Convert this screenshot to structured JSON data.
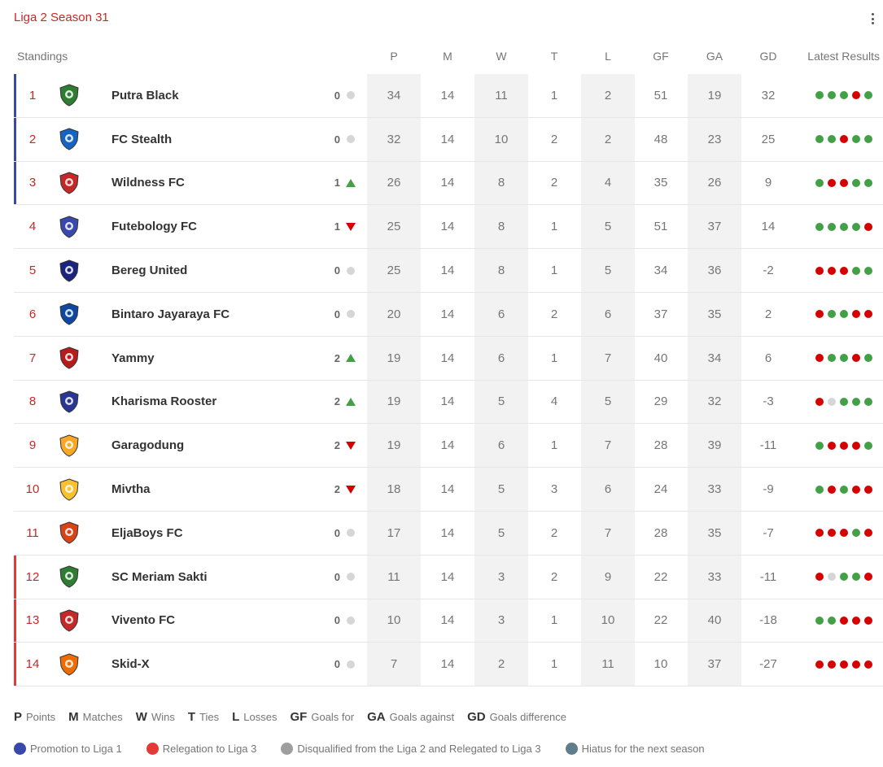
{
  "title": "Liga 2 Season 31",
  "header": {
    "standings": "Standings",
    "cols": [
      "P",
      "M",
      "W",
      "T",
      "L",
      "GF",
      "GA",
      "GD"
    ],
    "latest": "Latest Results"
  },
  "colors": {
    "promotion": "#3949ab",
    "relegation": "#e53935",
    "disqualified": "#9e9e9e",
    "hiatus": "#607d8b",
    "win": "#43a047",
    "loss": "#d50000",
    "draw": "#d6d6d6",
    "accent": "#c62828"
  },
  "rows": [
    {
      "pos": "1",
      "team": "Putra Black",
      "zone": "promotion",
      "chg": "0",
      "trend": "same",
      "stats": [
        "34",
        "14",
        "11",
        "1",
        "2",
        "51",
        "19",
        "32"
      ],
      "results": [
        "W",
        "W",
        "W",
        "L",
        "W"
      ],
      "logo_color": "#2e7d32"
    },
    {
      "pos": "2",
      "team": "FC Stealth",
      "zone": "promotion",
      "chg": "0",
      "trend": "same",
      "stats": [
        "32",
        "14",
        "10",
        "2",
        "2",
        "48",
        "23",
        "25"
      ],
      "results": [
        "W",
        "W",
        "L",
        "W",
        "W"
      ],
      "logo_color": "#1565c0"
    },
    {
      "pos": "3",
      "team": "Wildness FC",
      "zone": "promotion",
      "chg": "1",
      "trend": "up",
      "stats": [
        "26",
        "14",
        "8",
        "2",
        "4",
        "35",
        "26",
        "9"
      ],
      "results": [
        "W",
        "L",
        "L",
        "W",
        "W"
      ],
      "logo_color": "#c62828"
    },
    {
      "pos": "4",
      "team": "Futebology FC",
      "zone": "",
      "chg": "1",
      "trend": "down",
      "stats": [
        "25",
        "14",
        "8",
        "1",
        "5",
        "51",
        "37",
        "14"
      ],
      "results": [
        "W",
        "W",
        "W",
        "W",
        "L"
      ],
      "logo_color": "#3949ab"
    },
    {
      "pos": "5",
      "team": "Bereg United",
      "zone": "",
      "chg": "0",
      "trend": "same",
      "stats": [
        "25",
        "14",
        "8",
        "1",
        "5",
        "34",
        "36",
        "-2"
      ],
      "results": [
        "L",
        "L",
        "L",
        "W",
        "W"
      ],
      "logo_color": "#1a237e"
    },
    {
      "pos": "6",
      "team": "Bintaro Jayaraya FC",
      "zone": "",
      "chg": "0",
      "trend": "same",
      "stats": [
        "20",
        "14",
        "6",
        "2",
        "6",
        "37",
        "35",
        "2"
      ],
      "results": [
        "L",
        "W",
        "W",
        "L",
        "L"
      ],
      "logo_color": "#0d47a1"
    },
    {
      "pos": "7",
      "team": "Yammy",
      "zone": "",
      "chg": "2",
      "trend": "up",
      "stats": [
        "19",
        "14",
        "6",
        "1",
        "7",
        "40",
        "34",
        "6"
      ],
      "results": [
        "L",
        "W",
        "W",
        "L",
        "W"
      ],
      "logo_color": "#b71c1c"
    },
    {
      "pos": "8",
      "team": "Kharisma Rooster",
      "zone": "",
      "chg": "2",
      "trend": "up",
      "stats": [
        "19",
        "14",
        "5",
        "4",
        "5",
        "29",
        "32",
        "-3"
      ],
      "results": [
        "L",
        "D",
        "W",
        "W",
        "W"
      ],
      "logo_color": "#283593"
    },
    {
      "pos": "9",
      "team": "Garagodung",
      "zone": "",
      "chg": "2",
      "trend": "down",
      "stats": [
        "19",
        "14",
        "6",
        "1",
        "7",
        "28",
        "39",
        "-11"
      ],
      "results": [
        "W",
        "L",
        "L",
        "L",
        "W"
      ],
      "logo_color": "#f9a825"
    },
    {
      "pos": "10",
      "team": "Mivtha",
      "zone": "",
      "chg": "2",
      "trend": "down",
      "stats": [
        "18",
        "14",
        "5",
        "3",
        "6",
        "24",
        "33",
        "-9"
      ],
      "results": [
        "W",
        "L",
        "W",
        "L",
        "L"
      ],
      "logo_color": "#fbc02d"
    },
    {
      "pos": "11",
      "team": "EljaBoys FC",
      "zone": "",
      "chg": "0",
      "trend": "same",
      "stats": [
        "17",
        "14",
        "5",
        "2",
        "7",
        "28",
        "35",
        "-7"
      ],
      "results": [
        "L",
        "L",
        "L",
        "W",
        "L"
      ],
      "logo_color": "#d84315"
    },
    {
      "pos": "12",
      "team": "SC Meriam Sakti",
      "zone": "relegation",
      "chg": "0",
      "trend": "same",
      "stats": [
        "11",
        "14",
        "3",
        "2",
        "9",
        "22",
        "33",
        "-11"
      ],
      "results": [
        "L",
        "D",
        "W",
        "W",
        "L"
      ],
      "logo_color": "#2e7d32"
    },
    {
      "pos": "13",
      "team": "Vivento FC",
      "zone": "relegation",
      "chg": "0",
      "trend": "same",
      "stats": [
        "10",
        "14",
        "3",
        "1",
        "10",
        "22",
        "40",
        "-18"
      ],
      "results": [
        "W",
        "W",
        "L",
        "L",
        "L"
      ],
      "logo_color": "#c62828"
    },
    {
      "pos": "14",
      "team": "Skid-X",
      "zone": "relegation",
      "chg": "0",
      "trend": "same",
      "stats": [
        "7",
        "14",
        "2",
        "1",
        "11",
        "10",
        "37",
        "-27"
      ],
      "results": [
        "L",
        "L",
        "L",
        "L",
        "L"
      ],
      "logo_color": "#ef6c00"
    }
  ],
  "abbreviations": [
    {
      "key": "P",
      "label": "Points"
    },
    {
      "key": "M",
      "label": "Matches"
    },
    {
      "key": "W",
      "label": "Wins"
    },
    {
      "key": "T",
      "label": "Ties"
    },
    {
      "key": "L",
      "label": "Losses"
    },
    {
      "key": "GF",
      "label": "Goals for"
    },
    {
      "key": "GA",
      "label": "Goals against"
    },
    {
      "key": "GD",
      "label": "Goals difference"
    }
  ],
  "legend": [
    {
      "label": "Promotion to Liga 1",
      "color": "#3949ab"
    },
    {
      "label": "Relegation to Liga 3",
      "color": "#e53935"
    },
    {
      "label": "Disqualified from the Liga 2 and Relegated to Liga 3",
      "color": "#9e9e9e"
    },
    {
      "label": "Hiatus for the next season",
      "color": "#607d8b"
    }
  ]
}
